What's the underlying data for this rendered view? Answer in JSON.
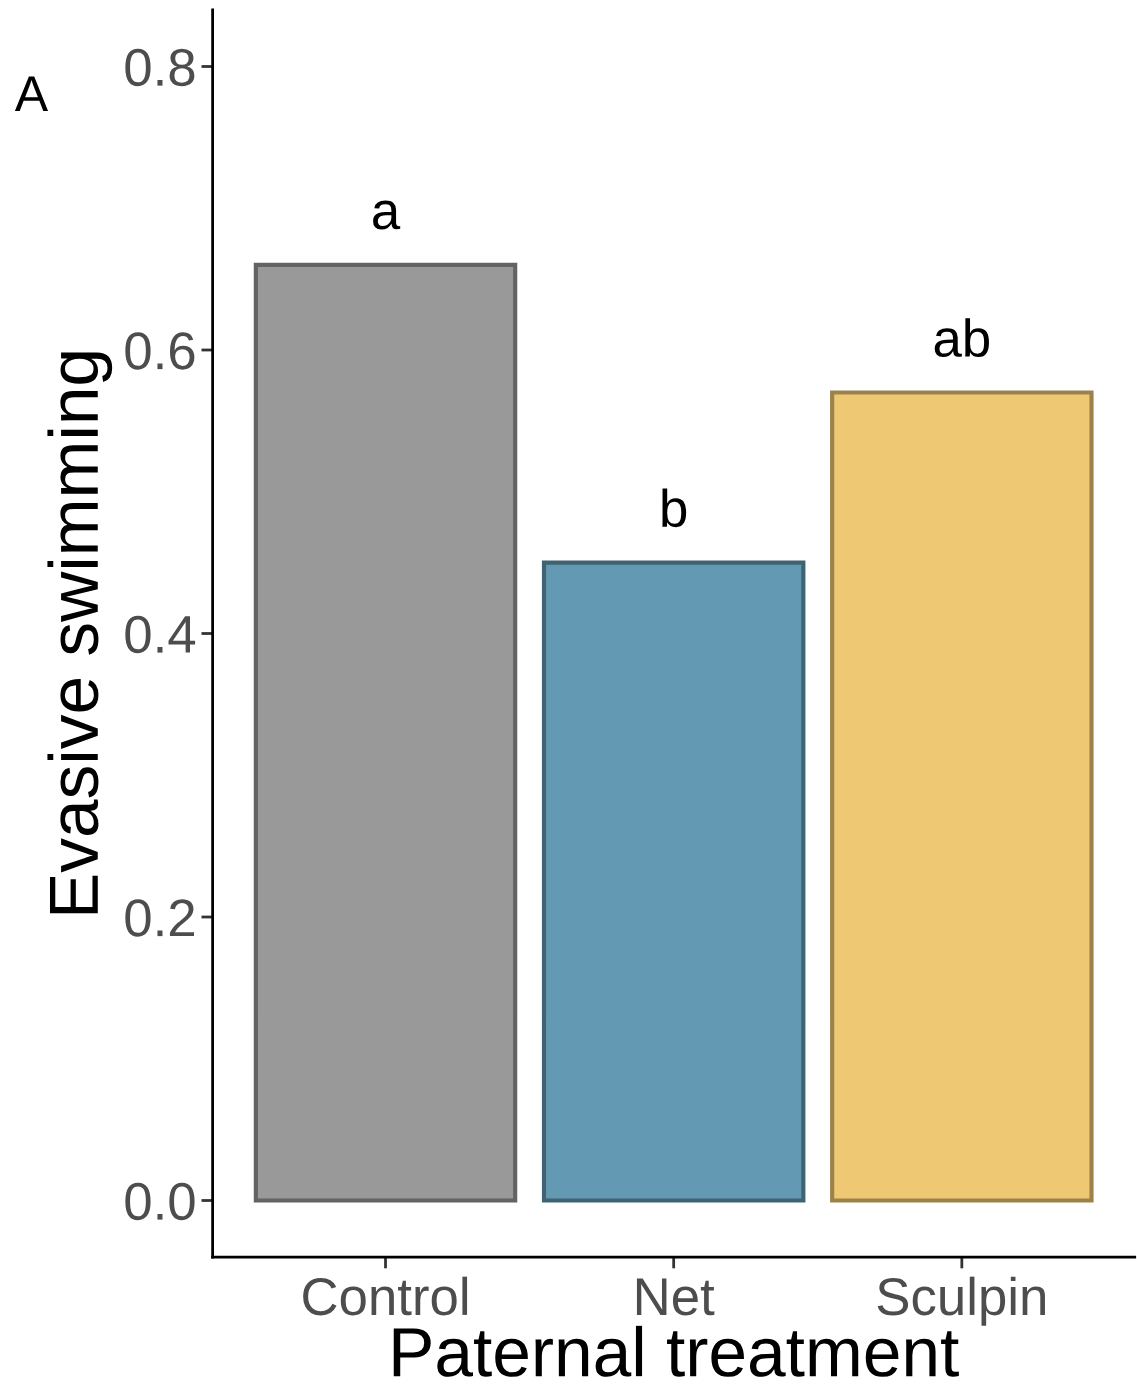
{
  "chart_data": {
    "type": "bar",
    "xlabel": "Paternal treatment",
    "ylabel": "Evasive swimming",
    "categories": [
      "Control",
      "Net",
      "Sculpin"
    ],
    "values": [
      0.66,
      0.45,
      0.57
    ],
    "colors": [
      "#999999",
      "#6399b2",
      "#efc874"
    ],
    "ylim": [
      -0.04,
      0.84
    ],
    "yticks": [
      {
        "value": 0,
        "label": "0.0"
      },
      0.2,
      0.4,
      0.6,
      0.8
    ],
    "annotations": [
      "A",
      "a",
      "b",
      "ab"
    ],
    "grid": false,
    "legend": false
  }
}
